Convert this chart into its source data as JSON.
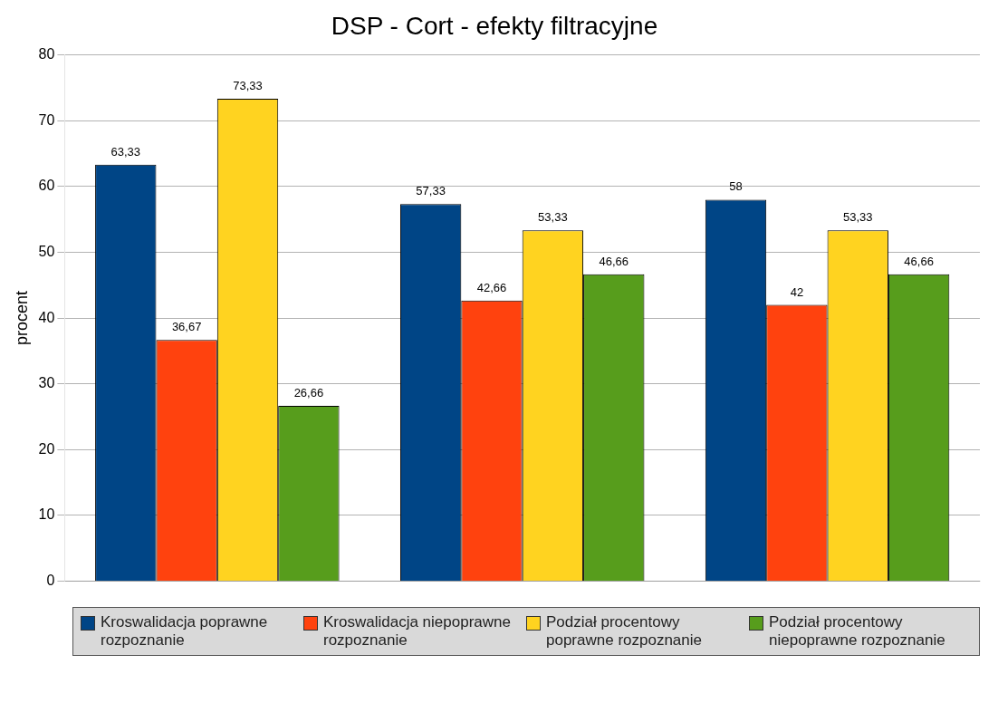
{
  "chart_data": {
    "type": "bar",
    "title": "DSP - Cort - efekty filtracyjne",
    "ylabel": "procent",
    "categories": [
      null,
      null,
      null
    ],
    "series": [
      {
        "name": "Kroswalidacja poprawne rozpoznanie",
        "color": "#004586",
        "values": [
          63.33,
          57.33,
          58
        ],
        "value_labels": [
          "63,33",
          "57,33",
          "58"
        ]
      },
      {
        "name": "Kroswalidacja niepoprawne rozpoznanie",
        "color": "#ff420e",
        "values": [
          36.67,
          42.66,
          42
        ],
        "value_labels": [
          "36,67",
          "42,66",
          "42"
        ]
      },
      {
        "name": "Podział procentowy poprawne rozpoznanie",
        "color": "#ffd320",
        "values": [
          73.33,
          53.33,
          53.33
        ],
        "value_labels": [
          "73,33",
          "53,33",
          "53,33"
        ]
      },
      {
        "name": "Podział procentowy niepoprawne rozpoznanie",
        "color": "#579d1c",
        "values": [
          26.66,
          46.66,
          46.66
        ],
        "value_labels": [
          "26,66",
          "46,66",
          "46,66"
        ]
      }
    ],
    "ylim": [
      0,
      80
    ],
    "yticks": [
      0,
      10,
      20,
      30,
      40,
      50,
      60,
      70,
      80
    ],
    "grid": "y",
    "legend": "bottom"
  }
}
